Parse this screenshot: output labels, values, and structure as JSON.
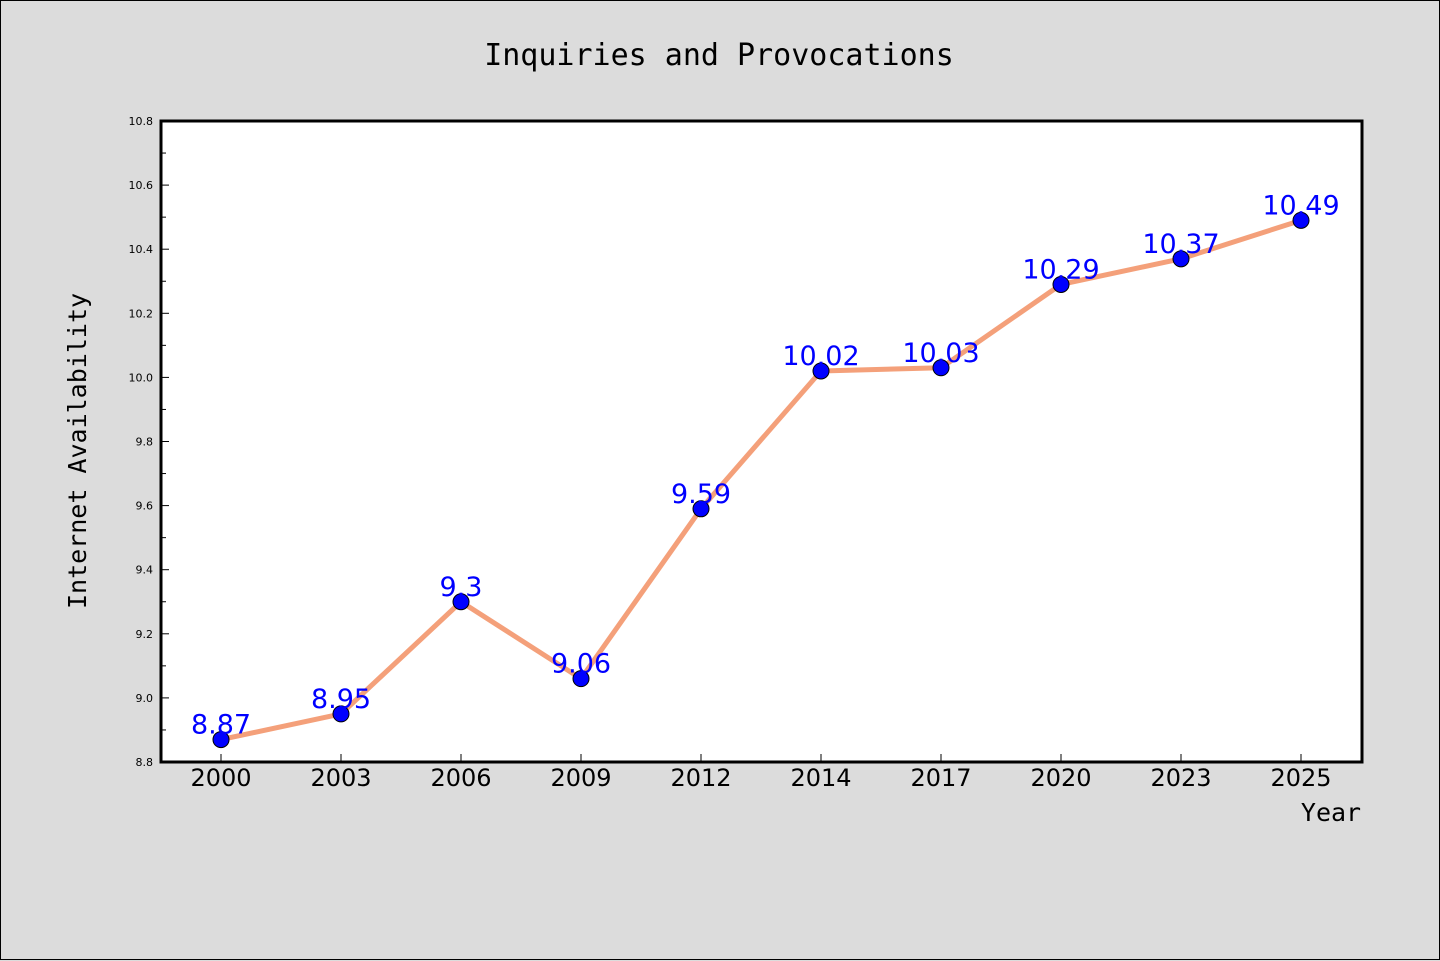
{
  "chart_data": {
    "type": "line",
    "title": "Inquiries and Provocations",
    "xlabel": "Year",
    "ylabel": "Internet Availability",
    "categories": [
      "2000",
      "2003",
      "2006",
      "2009",
      "2012",
      "2014",
      "2017",
      "2020",
      "2023",
      "2025"
    ],
    "series": [
      {
        "values": [
          8.87,
          8.95,
          9.3,
          9.06,
          9.59,
          10.02,
          10.03,
          10.29,
          10.37,
          10.49
        ],
        "line_color": "#f4a07a",
        "marker_color": "#0000ff",
        "label_color": "#0000ff"
      }
    ],
    "ylim": [
      8.8,
      10.8
    ],
    "yticks": [
      "8.8",
      "9.0",
      "9.2",
      "9.4",
      "9.6",
      "9.8",
      "10.0",
      "10.2",
      "10.4",
      "10.6",
      "10.8"
    ],
    "grid": false,
    "legend": "none",
    "data_labels": true
  }
}
